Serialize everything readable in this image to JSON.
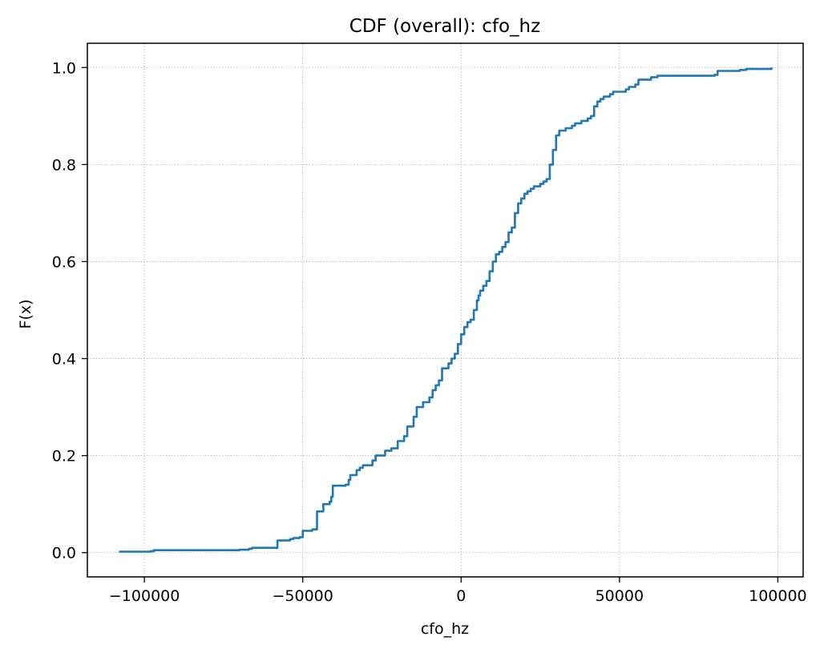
{
  "chart_data": {
    "type": "line",
    "title": "CDF (overall): cfo_hz",
    "xlabel": "cfo_hz",
    "ylabel": "F(x)",
    "xlim": [
      -118000,
      108000
    ],
    "ylim": [
      -0.05,
      1.05
    ],
    "xticks": [
      -100000,
      -50000,
      0,
      50000,
      100000
    ],
    "xtick_labels": [
      "−100000",
      "−50000",
      "0",
      "50000",
      "100000"
    ],
    "yticks": [
      0.0,
      0.2,
      0.4,
      0.6,
      0.8,
      1.0
    ],
    "ytick_labels": [
      "0.0",
      "0.2",
      "0.4",
      "0.6",
      "0.8",
      "1.0"
    ],
    "grid": true,
    "colors": {
      "line": "#1f77b4",
      "grid": "#b0b0b0",
      "axes": "#000000"
    },
    "series": [
      {
        "x": [
          -108000,
          -98000,
          -97000,
          -75000,
          -70000,
          -67000,
          -66000,
          -58000,
          -58000,
          -54000,
          -53000,
          -51000,
          -50000,
          -47000,
          -45500,
          -45500,
          -43500,
          -43500,
          -41500,
          -41000,
          -40500,
          -40500,
          -36500,
          -35500,
          -35000,
          -33000,
          -32000,
          -31000,
          -28000,
          -27000,
          -24000,
          -22000,
          -20000,
          -18000,
          -17000,
          -17000,
          -15000,
          -14000,
          -12000,
          -10000,
          -9000,
          -8000,
          -7000,
          -6000,
          -4000,
          -3000,
          -2000,
          -1000,
          -1000,
          0,
          1000,
          2000,
          3000,
          4000,
          5000,
          5500,
          6000,
          7000,
          8000,
          9000,
          10000,
          11000,
          11000,
          12000,
          13000,
          14000,
          15000,
          16000,
          17000,
          17000,
          18000,
          19000,
          20000,
          21000,
          22000,
          23000,
          25000,
          26000,
          27000,
          28000,
          28000,
          29000,
          30000,
          30000,
          31000,
          33000,
          35000,
          36000,
          38000,
          40000,
          41000,
          42000,
          42000,
          43000,
          44000,
          45000,
          47000,
          48000,
          52000,
          53000,
          55000,
          56000,
          56000,
          60000,
          62000,
          80000,
          81000,
          81000,
          88000,
          90000,
          98000
        ],
        "y": [
          0.002,
          0.003,
          0.005,
          0.005,
          0.006,
          0.008,
          0.01,
          0.011,
          0.025,
          0.028,
          0.03,
          0.032,
          0.045,
          0.048,
          0.055,
          0.085,
          0.09,
          0.1,
          0.105,
          0.115,
          0.13,
          0.138,
          0.14,
          0.15,
          0.16,
          0.17,
          0.175,
          0.18,
          0.19,
          0.2,
          0.21,
          0.215,
          0.23,
          0.24,
          0.25,
          0.26,
          0.28,
          0.3,
          0.31,
          0.32,
          0.335,
          0.345,
          0.355,
          0.38,
          0.39,
          0.4,
          0.41,
          0.42,
          0.43,
          0.45,
          0.465,
          0.475,
          0.48,
          0.5,
          0.52,
          0.53,
          0.54,
          0.55,
          0.56,
          0.58,
          0.6,
          0.61,
          0.615,
          0.62,
          0.63,
          0.64,
          0.66,
          0.67,
          0.68,
          0.7,
          0.72,
          0.73,
          0.74,
          0.745,
          0.75,
          0.755,
          0.76,
          0.765,
          0.77,
          0.79,
          0.8,
          0.83,
          0.85,
          0.86,
          0.87,
          0.875,
          0.88,
          0.885,
          0.89,
          0.895,
          0.9,
          0.91,
          0.92,
          0.93,
          0.935,
          0.94,
          0.945,
          0.95,
          0.955,
          0.96,
          0.965,
          0.97,
          0.975,
          0.98,
          0.983,
          0.985,
          0.99,
          0.993,
          0.995,
          0.997,
          1.0
        ]
      }
    ]
  }
}
